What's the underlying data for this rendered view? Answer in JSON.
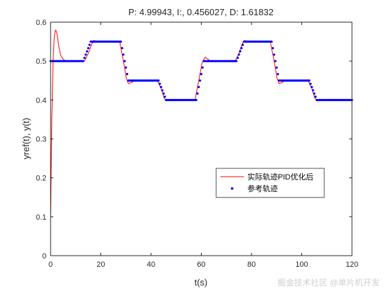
{
  "chart_data": {
    "type": "line",
    "title": "P: 4.99943, I:, 0.456027, D: 1.61832",
    "xlabel": "t(s)",
    "ylabel": "yref(t), y(t)",
    "xlim": [
      0,
      120
    ],
    "ylim": [
      0,
      0.6
    ],
    "xticks": [
      0,
      20,
      40,
      60,
      80,
      100,
      120
    ],
    "yticks": [
      0,
      0.1,
      0.2,
      0.3,
      0.4,
      0.5,
      0.6
    ],
    "xtick_labels": [
      "0",
      "20",
      "40",
      "60",
      "80",
      "100",
      "120"
    ],
    "ytick_labels": [
      "0",
      "0.1",
      "0.2",
      "0.3",
      "0.4",
      "0.5",
      "0.6"
    ],
    "grid": false,
    "legend_position": "center-right",
    "series": [
      {
        "name": "实际轨迹PID优化后",
        "color": "#ff0000",
        "style": "line",
        "x": [
          0,
          0.5,
          1.0,
          1.5,
          2.0,
          2.5,
          3.0,
          3.5,
          4.0,
          5.0,
          6.0,
          7.0,
          8.0,
          13.5,
          15.0,
          16.5,
          17.3,
          18.0,
          19.0,
          27.5,
          29.0,
          30.2,
          31.0,
          32.5,
          33.5,
          42.5,
          44.0,
          45.2,
          46.0,
          47.5,
          48.5,
          57.5,
          59.0,
          60.3,
          61.5,
          63.0,
          64.0,
          73.5,
          75.0,
          76.3,
          77.3,
          78.5,
          79.5,
          87.5,
          89.0,
          90.2,
          91.0,
          92.5,
          93.5,
          102.5,
          104.0,
          105.2,
          106.0,
          107.5,
          109.0,
          120
        ],
        "y": [
          0.09,
          0.35,
          0.5,
          0.565,
          0.58,
          0.572,
          0.55,
          0.53,
          0.515,
          0.505,
          0.5,
          0.5,
          0.5,
          0.5,
          0.52,
          0.545,
          0.553,
          0.551,
          0.55,
          0.55,
          0.5,
          0.455,
          0.442,
          0.446,
          0.45,
          0.45,
          0.43,
          0.405,
          0.398,
          0.399,
          0.4,
          0.4,
          0.45,
          0.495,
          0.51,
          0.503,
          0.5,
          0.5,
          0.52,
          0.545,
          0.553,
          0.551,
          0.55,
          0.55,
          0.5,
          0.455,
          0.442,
          0.446,
          0.45,
          0.45,
          0.43,
          0.405,
          0.398,
          0.399,
          0.4,
          0.4
        ]
      },
      {
        "name": "参考轨迹",
        "color": "#0000ff",
        "style": "markers",
        "sample_step": 0.5,
        "x": [
          0,
          13,
          14.5,
          16,
          28,
          29.5,
          31,
          43,
          44.5,
          46,
          58,
          59.5,
          61,
          74,
          75.5,
          77,
          88,
          89.5,
          91,
          103,
          104.5,
          106,
          120
        ],
        "y": [
          0.5,
          0.5,
          0.525,
          0.55,
          0.55,
          0.5,
          0.45,
          0.45,
          0.425,
          0.4,
          0.4,
          0.45,
          0.5,
          0.5,
          0.525,
          0.55,
          0.55,
          0.5,
          0.45,
          0.45,
          0.425,
          0.4,
          0.4
        ]
      }
    ]
  },
  "watermark": "掘金技术社区 @单片机开发"
}
